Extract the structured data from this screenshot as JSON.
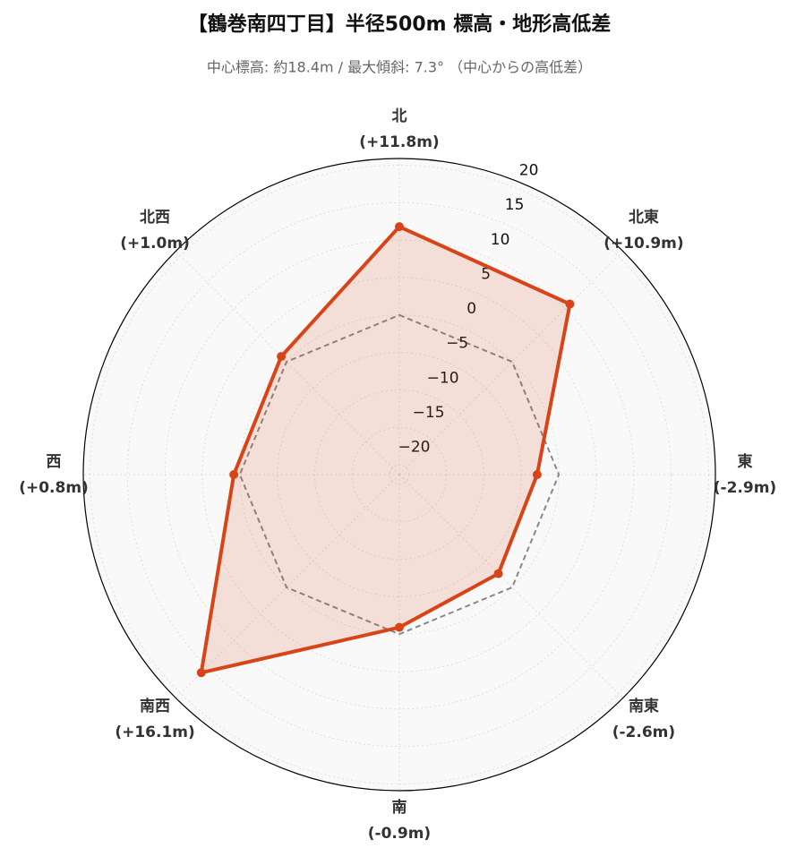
{
  "chart_data": {
    "type": "radar",
    "title": "【鶴巻南四丁目】半径500m 標高・地形高低差",
    "subtitle": "中心標高: 約18.4m / 最大傾斜: 7.3° （中心からの高低差）",
    "categories": [
      "北",
      "北東",
      "東",
      "南東",
      "南",
      "南西",
      "西",
      "北西"
    ],
    "series": [
      {
        "values": [
          11.8,
          10.9,
          -2.9,
          -2.6,
          -0.9,
          16.1,
          0.8,
          1.0
        ],
        "value_labels": [
          "(+11.8m)",
          "(+10.9m)",
          "(-2.9m)",
          "(-2.6m)",
          "(-0.9m)",
          "(+16.1m)",
          "(+0.8m)",
          "(+1.0m)"
        ],
        "color": "#d84418"
      }
    ],
    "reference_value": 0,
    "reference_color": "#888888",
    "ylim": [
      -21.3,
      20.9
    ],
    "yticks": [
      {
        "value": -20,
        "label": "−20"
      },
      {
        "value": -15,
        "label": "−15"
      },
      {
        "value": -10,
        "label": "−10"
      },
      {
        "value": -5,
        "label": "−5"
      },
      0,
      5,
      10,
      15,
      20
    ],
    "grid": true
  }
}
